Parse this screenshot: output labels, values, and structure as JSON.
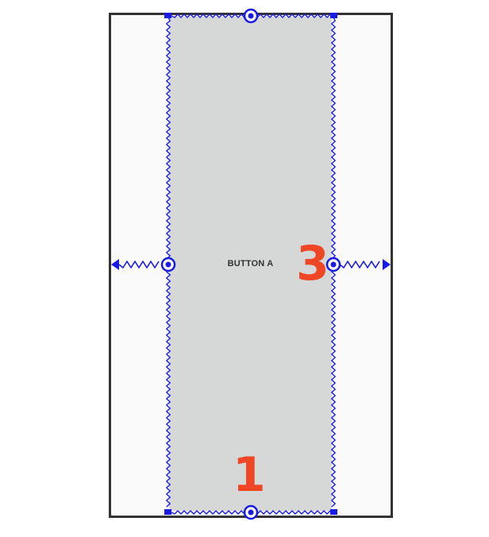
{
  "button": {
    "label": "BUTTON A"
  },
  "callouts": {
    "first": "3",
    "second": "1"
  },
  "colors": {
    "frame_border": "#333333",
    "frame_background": "#fafafa",
    "button_fill": "#d6d7d7",
    "constraint": "#1a1ae6",
    "callout": "#ef4726"
  },
  "icons": {
    "anchor": "circle-handle-icon",
    "arrow": "arrowhead-icon",
    "corner": "corner-handle-icon"
  }
}
